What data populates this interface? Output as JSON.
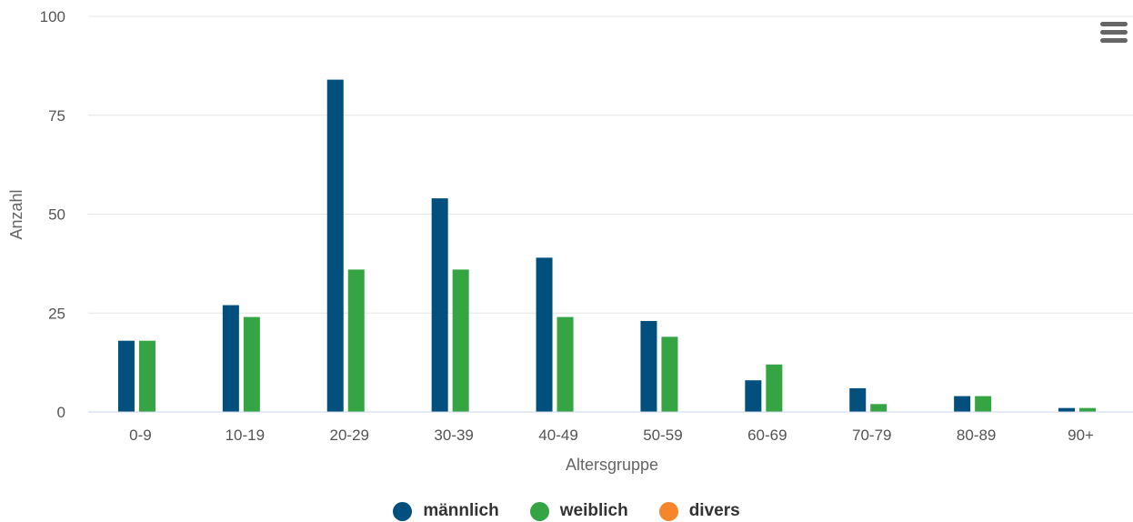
{
  "chart_data": {
    "type": "bar",
    "title": "",
    "xlabel": "Altersgruppe",
    "ylabel": "Anzahl",
    "ylim": [
      0,
      100
    ],
    "yticks": [
      0,
      25,
      50,
      75,
      100
    ],
    "grid": true,
    "legend_position": "bottom-center",
    "categories": [
      "0-9",
      "10-19",
      "20-29",
      "30-39",
      "40-49",
      "50-59",
      "60-69",
      "70-79",
      "80-89",
      "90+"
    ],
    "series": [
      {
        "name": "männlich",
        "color": "#004f7c",
        "values": [
          18,
          27,
          84,
          54,
          39,
          23,
          8,
          6,
          4,
          1
        ]
      },
      {
        "name": "weiblich",
        "color": "#35a442",
        "values": [
          18,
          24,
          36,
          36,
          24,
          19,
          12,
          2,
          4,
          1
        ]
      },
      {
        "name": "divers",
        "color": "#f7862b",
        "values": [
          0,
          0,
          0,
          0,
          0,
          0,
          0,
          0,
          0,
          0
        ]
      }
    ]
  },
  "menu": {
    "icon": "hamburger-menu-icon"
  }
}
